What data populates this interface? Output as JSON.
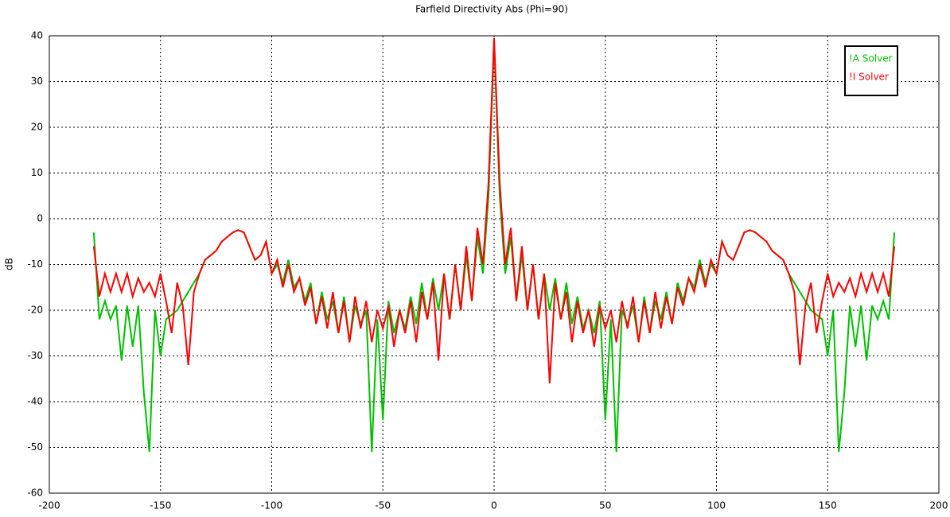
{
  "chart_data": {
    "type": "line",
    "title": "Farfield Directivity Abs (Phi=90)",
    "y_label": "dB",
    "x": [
      -180,
      -177.5,
      -175,
      -172.5,
      -170,
      -167.5,
      -165,
      -162.5,
      -160,
      -157.5,
      -155,
      -152.5,
      -150,
      -147.5,
      -145,
      -142.5,
      -140,
      -137.5,
      -135,
      -132.5,
      -130,
      -127.5,
      -125,
      -122.5,
      -120,
      -117.5,
      -115,
      -112.5,
      -110,
      -107.5,
      -105,
      -102.5,
      -100,
      -97.5,
      -95,
      -92.5,
      -90,
      -87.5,
      -85,
      -82.5,
      -80,
      -77.5,
      -75,
      -72.5,
      -70,
      -67.5,
      -65,
      -62.5,
      -60,
      -57.5,
      -55,
      -52.5,
      -50,
      -47.5,
      -45,
      -42.5,
      -40,
      -37.5,
      -35,
      -32.5,
      -30,
      -27.5,
      -25,
      -22.5,
      -20,
      -17.5,
      -15,
      -12.5,
      -10,
      -7.5,
      -5,
      -2.5,
      0,
      2.5,
      5,
      7.5,
      10,
      12.5,
      15,
      17.5,
      20,
      22.5,
      25,
      27.5,
      30,
      32.5,
      35,
      37.5,
      40,
      42.5,
      45,
      47.5,
      50,
      52.5,
      55,
      57.5,
      60,
      62.5,
      65,
      67.5,
      70,
      72.5,
      75,
      77.5,
      80,
      82.5,
      85,
      87.5,
      90,
      92.5,
      95,
      97.5,
      100,
      102.5,
      105,
      107.5,
      110,
      112.5,
      115,
      117.5,
      120,
      122.5,
      125,
      127.5,
      130,
      132.5,
      135,
      137.5,
      140,
      142.5,
      145,
      147.5,
      150,
      152.5,
      155,
      157.5,
      160,
      162.5,
      165,
      167.5,
      170,
      172.5,
      175,
      177.5,
      180
    ],
    "series": [
      {
        "name": "!A Solver",
        "color": "#00c000",
        "values": [
          -3,
          -22,
          -18,
          -22,
          -19,
          -31,
          -19,
          -28,
          -19,
          -38,
          -51,
          -20,
          -30,
          -22,
          -21,
          -20,
          -18,
          -16,
          -14,
          -12,
          -9,
          -8,
          -7,
          -5,
          -4,
          -3,
          -2.5,
          -3,
          -6,
          -9,
          -8,
          -5,
          -12,
          -10,
          -14,
          -9,
          -15,
          -13,
          -18,
          -14,
          -23,
          -16,
          -22,
          -18,
          -25,
          -17,
          -27,
          -19,
          -23,
          -20,
          -51,
          -22,
          -44,
          -18,
          -25,
          -20,
          -24,
          -17,
          -23,
          -14,
          -22,
          -13,
          -20,
          -12,
          -22,
          -10,
          -20,
          -8,
          -18,
          -4,
          -12,
          5,
          39,
          5,
          -12,
          -4,
          -18,
          -8,
          -20,
          -10,
          -22,
          -12,
          -20,
          -13,
          -22,
          -14,
          -23,
          -17,
          -24,
          -20,
          -25,
          -18,
          -44,
          -22,
          -51,
          -20,
          -23,
          -19,
          -27,
          -17,
          -25,
          -18,
          -22,
          -16,
          -23,
          -14,
          -18,
          -13,
          -15,
          -9,
          -14,
          -10,
          -12,
          -5,
          -8,
          -9,
          -6,
          -3,
          -2.5,
          -3,
          -4,
          -5,
          -7,
          -8,
          -9,
          -12,
          -14,
          -16,
          -18,
          -20,
          -21,
          -22,
          -30,
          -20,
          -51,
          -38,
          -19,
          -28,
          -19,
          -31,
          -19,
          -22,
          -18,
          -22,
          -3
        ]
      },
      {
        "name": "!I Solver",
        "color": "#ff0000",
        "values": [
          -6,
          -17,
          -12,
          -16,
          -12,
          -16,
          -12,
          -17,
          -13,
          -16,
          -14,
          -17,
          -12,
          -18,
          -25,
          -14,
          -19,
          -32,
          -16,
          -12,
          -9,
          -8,
          -7,
          -5,
          -4,
          -3,
          -2.5,
          -3,
          -6,
          -9,
          -8,
          -5,
          -12,
          -9,
          -15,
          -10,
          -16,
          -13,
          -19,
          -15,
          -23,
          -17,
          -24,
          -16,
          -25,
          -18,
          -27,
          -17,
          -24,
          -18,
          -27,
          -20,
          -24,
          -19,
          -28,
          -20,
          -25,
          -18,
          -27,
          -16,
          -22,
          -14,
          -31,
          -12,
          -22,
          -10,
          -20,
          -6,
          -18,
          -2,
          -10,
          8,
          39.5,
          8,
          -10,
          -2,
          -18,
          -6,
          -20,
          -10,
          -22,
          -12,
          -36,
          -14,
          -22,
          -16,
          -27,
          -18,
          -25,
          -20,
          -28,
          -19,
          -24,
          -20,
          -27,
          -18,
          -24,
          -17,
          -27,
          -18,
          -25,
          -16,
          -24,
          -17,
          -23,
          -15,
          -19,
          -13,
          -16,
          -10,
          -15,
          -9,
          -12,
          -5,
          -8,
          -9,
          -6,
          -3,
          -2.5,
          -3,
          -4,
          -5,
          -7,
          -8,
          -9,
          -12,
          -16,
          -32,
          -19,
          -14,
          -25,
          -18,
          -12,
          -17,
          -14,
          -16,
          -13,
          -17,
          -12,
          -16,
          -12,
          -16,
          -12,
          -17,
          -6
        ]
      }
    ],
    "xlim": [
      -200,
      200
    ],
    "xticks": [
      -200,
      -150,
      -100,
      -50,
      0,
      50,
      100,
      150,
      200
    ],
    "ylim": [
      -60,
      40
    ],
    "yticks": [
      -60,
      -50,
      -40,
      -30,
      -20,
      -10,
      0,
      10,
      20,
      30,
      40
    ],
    "grid": true,
    "legend": "top-right"
  }
}
